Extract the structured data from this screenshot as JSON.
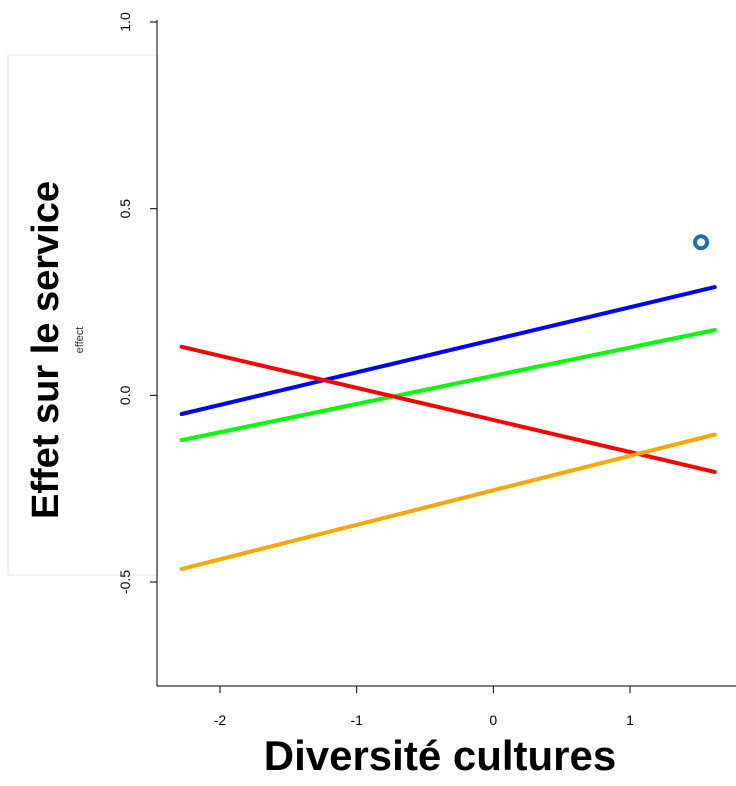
{
  "chart_data": {
    "type": "line",
    "xlabel": "Diversité cultures",
    "ylabel": "Effet sur le service",
    "ylabel_small": "effect",
    "xlim": [
      -2.3,
      1.65
    ],
    "ylim": [
      -0.78,
      1.0
    ],
    "x_ticks": [
      {
        "value": -2,
        "label": "-2"
      },
      {
        "value": -1,
        "label": "-1"
      },
      {
        "value": 0,
        "label": "0"
      },
      {
        "value": 1,
        "label": "1"
      }
    ],
    "y_ticks": [
      {
        "value": -0.5,
        "label": "-0.5"
      },
      {
        "value": 0.0,
        "label": "0.0"
      },
      {
        "value": 0.5,
        "label": "0.5"
      },
      {
        "value": 1.0,
        "label": "1.0"
      }
    ],
    "grid": false,
    "series": [
      {
        "color": "#0000ff",
        "x": [
          -2.28,
          1.62
        ],
        "y": [
          -0.05,
          0.29
        ]
      },
      {
        "color": "#00ff00",
        "x": [
          -2.28,
          1.62
        ],
        "y": [
          -0.12,
          0.175
        ]
      },
      {
        "color": "#ff0000",
        "x": [
          -2.28,
          1.62
        ],
        "y": [
          0.13,
          -0.205
        ]
      },
      {
        "color": "#ffa500",
        "x": [
          -2.28,
          1.62
        ],
        "y": [
          -0.465,
          -0.105
        ]
      }
    ],
    "points": [
      {
        "x": 1.52,
        "y": 0.41,
        "color": "#1f6fb2"
      }
    ]
  }
}
